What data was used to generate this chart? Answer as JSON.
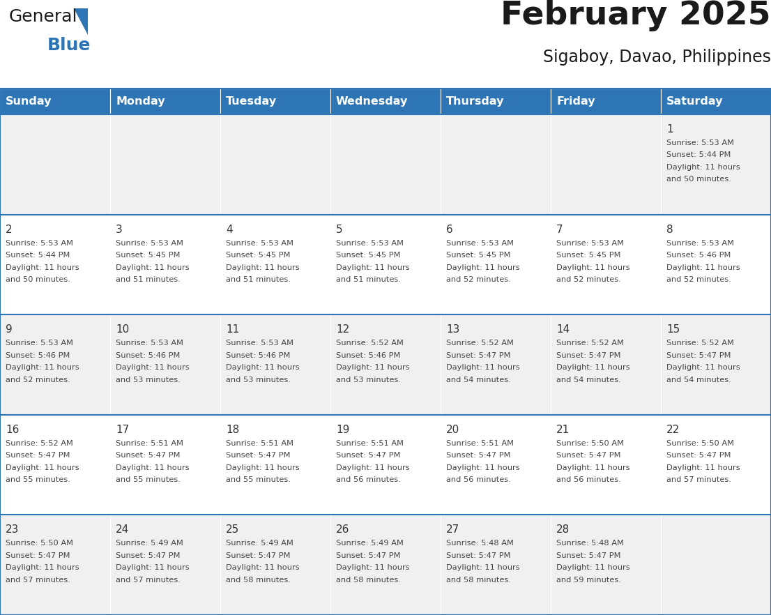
{
  "title": "February 2025",
  "subtitle": "Sigaboy, Davao, Philippines",
  "header_bg": "#2E75B6",
  "header_text_color": "#FFFFFF",
  "row_bg_odd": "#F0F0F0",
  "row_bg_even": "#FFFFFF",
  "day_number_color": "#333333",
  "text_color": "#444444",
  "border_color": "#2E75B6",
  "days_of_week": [
    "Sunday",
    "Monday",
    "Tuesday",
    "Wednesday",
    "Thursday",
    "Friday",
    "Saturday"
  ],
  "weeks": [
    [
      {
        "day": null,
        "sunrise": null,
        "sunset": null,
        "daylight": null
      },
      {
        "day": null,
        "sunrise": null,
        "sunset": null,
        "daylight": null
      },
      {
        "day": null,
        "sunrise": null,
        "sunset": null,
        "daylight": null
      },
      {
        "day": null,
        "sunrise": null,
        "sunset": null,
        "daylight": null
      },
      {
        "day": null,
        "sunrise": null,
        "sunset": null,
        "daylight": null
      },
      {
        "day": null,
        "sunrise": null,
        "sunset": null,
        "daylight": null
      },
      {
        "day": 1,
        "sunrise": "5:53 AM",
        "sunset": "5:44 PM",
        "daylight": "11 hours and 50 minutes."
      }
    ],
    [
      {
        "day": 2,
        "sunrise": "5:53 AM",
        "sunset": "5:44 PM",
        "daylight": "11 hours and 50 minutes."
      },
      {
        "day": 3,
        "sunrise": "5:53 AM",
        "sunset": "5:45 PM",
        "daylight": "11 hours and 51 minutes."
      },
      {
        "day": 4,
        "sunrise": "5:53 AM",
        "sunset": "5:45 PM",
        "daylight": "11 hours and 51 minutes."
      },
      {
        "day": 5,
        "sunrise": "5:53 AM",
        "sunset": "5:45 PM",
        "daylight": "11 hours and 51 minutes."
      },
      {
        "day": 6,
        "sunrise": "5:53 AM",
        "sunset": "5:45 PM",
        "daylight": "11 hours and 52 minutes."
      },
      {
        "day": 7,
        "sunrise": "5:53 AM",
        "sunset": "5:45 PM",
        "daylight": "11 hours and 52 minutes."
      },
      {
        "day": 8,
        "sunrise": "5:53 AM",
        "sunset": "5:46 PM",
        "daylight": "11 hours and 52 minutes."
      }
    ],
    [
      {
        "day": 9,
        "sunrise": "5:53 AM",
        "sunset": "5:46 PM",
        "daylight": "11 hours and 52 minutes."
      },
      {
        "day": 10,
        "sunrise": "5:53 AM",
        "sunset": "5:46 PM",
        "daylight": "11 hours and 53 minutes."
      },
      {
        "day": 11,
        "sunrise": "5:53 AM",
        "sunset": "5:46 PM",
        "daylight": "11 hours and 53 minutes."
      },
      {
        "day": 12,
        "sunrise": "5:52 AM",
        "sunset": "5:46 PM",
        "daylight": "11 hours and 53 minutes."
      },
      {
        "day": 13,
        "sunrise": "5:52 AM",
        "sunset": "5:47 PM",
        "daylight": "11 hours and 54 minutes."
      },
      {
        "day": 14,
        "sunrise": "5:52 AM",
        "sunset": "5:47 PM",
        "daylight": "11 hours and 54 minutes."
      },
      {
        "day": 15,
        "sunrise": "5:52 AM",
        "sunset": "5:47 PM",
        "daylight": "11 hours and 54 minutes."
      }
    ],
    [
      {
        "day": 16,
        "sunrise": "5:52 AM",
        "sunset": "5:47 PM",
        "daylight": "11 hours and 55 minutes."
      },
      {
        "day": 17,
        "sunrise": "5:51 AM",
        "sunset": "5:47 PM",
        "daylight": "11 hours and 55 minutes."
      },
      {
        "day": 18,
        "sunrise": "5:51 AM",
        "sunset": "5:47 PM",
        "daylight": "11 hours and 55 minutes."
      },
      {
        "day": 19,
        "sunrise": "5:51 AM",
        "sunset": "5:47 PM",
        "daylight": "11 hours and 56 minutes."
      },
      {
        "day": 20,
        "sunrise": "5:51 AM",
        "sunset": "5:47 PM",
        "daylight": "11 hours and 56 minutes."
      },
      {
        "day": 21,
        "sunrise": "5:50 AM",
        "sunset": "5:47 PM",
        "daylight": "11 hours and 56 minutes."
      },
      {
        "day": 22,
        "sunrise": "5:50 AM",
        "sunset": "5:47 PM",
        "daylight": "11 hours and 57 minutes."
      }
    ],
    [
      {
        "day": 23,
        "sunrise": "5:50 AM",
        "sunset": "5:47 PM",
        "daylight": "11 hours and 57 minutes."
      },
      {
        "day": 24,
        "sunrise": "5:49 AM",
        "sunset": "5:47 PM",
        "daylight": "11 hours and 57 minutes."
      },
      {
        "day": 25,
        "sunrise": "5:49 AM",
        "sunset": "5:47 PM",
        "daylight": "11 hours and 58 minutes."
      },
      {
        "day": 26,
        "sunrise": "5:49 AM",
        "sunset": "5:47 PM",
        "daylight": "11 hours and 58 minutes."
      },
      {
        "day": 27,
        "sunrise": "5:48 AM",
        "sunset": "5:47 PM",
        "daylight": "11 hours and 58 minutes."
      },
      {
        "day": 28,
        "sunrise": "5:48 AM",
        "sunset": "5:47 PM",
        "daylight": "11 hours and 59 minutes."
      },
      {
        "day": null,
        "sunrise": null,
        "sunset": null,
        "daylight": null
      }
    ]
  ],
  "logo_general_color": "#1a1a1a",
  "logo_blue_color": "#2E75B6",
  "logo_triangle_color": "#2E75B6"
}
